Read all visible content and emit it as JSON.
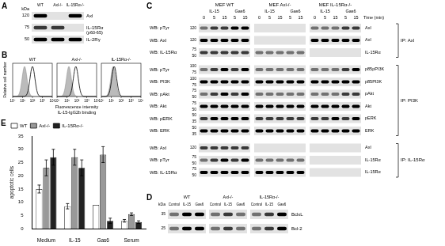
{
  "panels": {
    "A": {
      "letter": "A",
      "kda_title": "kDa",
      "lanes": [
        "WT",
        "Axl-/-",
        "IL-15Rα-/-"
      ],
      "rows": [
        {
          "kda": 120,
          "label": "Axl",
          "bands": [
            3,
            0,
            3
          ]
        },
        {
          "kda": 75,
          "label": "IL-15Rα",
          "sublabel": "(p60-65)",
          "bands": [
            2,
            2,
            0
          ]
        },
        {
          "kda": 50,
          "label": "IL-2Rγ",
          "bands": [
            3,
            3,
            3
          ]
        }
      ]
    },
    "B": {
      "letter": "B",
      "y_label": "Relative cell number",
      "x_label": [
        "Fluorescence intensity",
        "IL-15-IgG2b binding"
      ],
      "xlim": [
        0,
        4
      ],
      "xticks": [
        {
          "value": 0,
          "label": "10⁰"
        },
        {
          "value": 1,
          "label": "10¹"
        },
        {
          "value": 2,
          "label": "10²"
        },
        {
          "value": 3,
          "label": "10³"
        },
        {
          "value": 4,
          "label": "10⁴"
        }
      ],
      "plots": [
        {
          "title": "WT",
          "control_peak": 1.2,
          "stained_peak": 2.0
        },
        {
          "title": "Axl-/-",
          "control_peak": 1.2,
          "stained_peak": 1.9
        },
        {
          "title": "IL-15Rα-/-",
          "control_peak": 1.2,
          "stained_peak": 1.3
        }
      ]
    },
    "C": {
      "letter": "C",
      "groups": [
        "MEF WT",
        "MEF Axl-/-",
        "MEF IL-15Rα-/-"
      ],
      "treatments": [
        {
          "name": "IL-15",
          "times": [
            0,
            5,
            15
          ]
        },
        {
          "name": "Gas6",
          "times": [
            5,
            15
          ]
        }
      ],
      "time_label": "Time (min)",
      "ip_blocks": [
        {
          "label": "IP: Axl",
          "rows": [
            {
              "wb": "WB: pTyr",
              "kda": [
                120
              ],
              "target": "Axl",
              "bands": [
                [
                  1,
                  2,
                  2,
                  3,
                  3
                ],
                [
                  0,
                  0,
                  0,
                  0,
                  0
                ],
                [
                  1,
                  1,
                  1,
                  2,
                  2
                ]
              ]
            },
            {
              "wb": "WB: Axl",
              "kda": [
                120
              ],
              "target": "Axl",
              "bands": [
                [
                  3,
                  3,
                  3,
                  3,
                  3
                ],
                [
                  0,
                  0,
                  0,
                  0,
                  0
                ],
                [
                  3,
                  3,
                  3,
                  3,
                  3
                ]
              ]
            },
            {
              "wb": "WB: IL-15Rα",
              "kda": [
                75,
                50
              ],
              "target": "IL-15Rα",
              "bands": [
                [
                  2,
                  2,
                  2,
                  2,
                  2
                ],
                [
                  1,
                  1,
                  1,
                  1,
                  1
                ],
                [
                  0,
                  0,
                  0,
                  0,
                  0
                ]
              ]
            }
          ]
        },
        {
          "label": "IP: PI3K",
          "rows": [
            {
              "wb": "WB: pTyr",
              "kda": [
                100,
                75
              ],
              "target": "p85pPI3K",
              "bands": [
                [
                  1,
                  2,
                  3,
                  2,
                  3
                ],
                [
                  1,
                  1,
                  1,
                  1,
                  1
                ],
                [
                  1,
                  1,
                  1,
                  2,
                  3
                ]
              ]
            },
            {
              "wb": "WB: PI3K",
              "kda": [
                100,
                75
              ],
              "target": "p85PI3K",
              "bands": [
                [
                  3,
                  3,
                  3,
                  3,
                  3
                ],
                [
                  3,
                  3,
                  3,
                  3,
                  3
                ],
                [
                  3,
                  3,
                  3,
                  3,
                  3
                ]
              ]
            },
            {
              "wb": "WB: pAkt",
              "kda": [
                75,
                50
              ],
              "target": "pAkt",
              "bands": [
                [
                  1,
                  2,
                  3,
                  2,
                  3
                ],
                [
                  1,
                  1,
                  1,
                  1,
                  1
                ],
                [
                  1,
                  1,
                  1,
                  2,
                  2
                ]
              ]
            },
            {
              "wb": "WB: Akt",
              "kda": [
                75,
                50
              ],
              "target": "Akt",
              "bands": [
                [
                  3,
                  3,
                  3,
                  3,
                  3
                ],
                [
                  3,
                  3,
                  3,
                  3,
                  3
                ],
                [
                  3,
                  3,
                  3,
                  3,
                  3
                ]
              ]
            },
            {
              "wb": "WB: pERK",
              "kda": [
                50,
                35
              ],
              "target": "pERK",
              "bands": [
                [
                  2,
                  3,
                  3,
                  3,
                  3
                ],
                [
                  2,
                  2,
                  2,
                  2,
                  2
                ],
                [
                  2,
                  2,
                  3,
                  2,
                  3
                ]
              ]
            },
            {
              "wb": "WB: ERK",
              "kda": [
                50,
                35
              ],
              "target": "ERK",
              "bands": [
                [
                  3,
                  3,
                  3,
                  3,
                  3
                ],
                [
                  3,
                  3,
                  3,
                  3,
                  3
                ],
                [
                  3,
                  3,
                  3,
                  3,
                  3
                ]
              ]
            }
          ]
        },
        {
          "label": "IP: IL-15Rα",
          "rows": [
            {
              "wb": "WB: Axl",
              "kda": [
                120
              ],
              "target": "Axl",
              "bands": [
                [
                  2,
                  2,
                  2,
                  2,
                  2
                ],
                [
                  0,
                  0,
                  0,
                  0,
                  0
                ],
                [
                  0,
                  0,
                  0,
                  0,
                  0
                ]
              ]
            },
            {
              "wb": "WB: pTyr",
              "kda": [
                75,
                50
              ],
              "target": "IL-15Rα",
              "bands": [
                [
                  1,
                  2,
                  3,
                  2,
                  3
                ],
                [
                  1,
                  1,
                  1,
                  1,
                  1
                ],
                [
                  0,
                  0,
                  0,
                  0,
                  0
                ]
              ]
            },
            {
              "wb": "WB: IL-15Rα",
              "kda": [
                75,
                50
              ],
              "target": "IL-15Rα",
              "bands": [
                [
                  3,
                  3,
                  3,
                  3,
                  3
                ],
                [
                  3,
                  3,
                  3,
                  3,
                  3
                ],
                [
                  0,
                  0,
                  0,
                  0,
                  0
                ]
              ]
            }
          ]
        }
      ]
    },
    "D": {
      "letter": "D",
      "kda_title": "kDa",
      "groups": [
        "WT",
        "Axl-/-",
        "IL-15Rα-/-"
      ],
      "lanes": [
        "Control",
        "IL-15",
        "Gas6"
      ],
      "rows": [
        {
          "kda": 35,
          "label": "BclxL",
          "bands": [
            [
              1,
              3,
              3
            ],
            [
              1,
              2,
              1
            ],
            [
              1,
              2,
              3
            ]
          ]
        },
        {
          "kda": 25,
          "label": "Bcl-2",
          "bands": [
            [
              1,
              3,
              3
            ],
            [
              1,
              2,
              1
            ],
            [
              1,
              2,
              3
            ]
          ]
        }
      ]
    },
    "E": {
      "letter": "E"
    }
  },
  "chart_data": {
    "type": "bar",
    "y_label": "apoptotic cells",
    "categories": [
      "Medium",
      "IL-15",
      "Gas6",
      "Serum"
    ],
    "series": [
      {
        "name": "WT",
        "color": "#ffffff",
        "values": [
          15,
          8.5,
          9,
          3
        ],
        "errors": [
          1.5,
          1,
          0,
          0.5
        ]
      },
      {
        "name": "Axl-/-",
        "color": "#999999",
        "values": [
          23,
          27,
          28,
          5.5
        ],
        "errors": [
          3,
          3,
          3,
          0.5
        ]
      },
      {
        "name": "IL-15Rα-/-",
        "color": "#222222",
        "values": [
          27,
          23,
          3,
          2.5
        ],
        "errors": [
          3,
          3,
          1,
          0.5
        ]
      }
    ],
    "ylim": [
      0,
      35
    ],
    "yticks": [
      0,
      5,
      10,
      15,
      20,
      25,
      30,
      35
    ],
    "grid": false,
    "legend": "top"
  }
}
